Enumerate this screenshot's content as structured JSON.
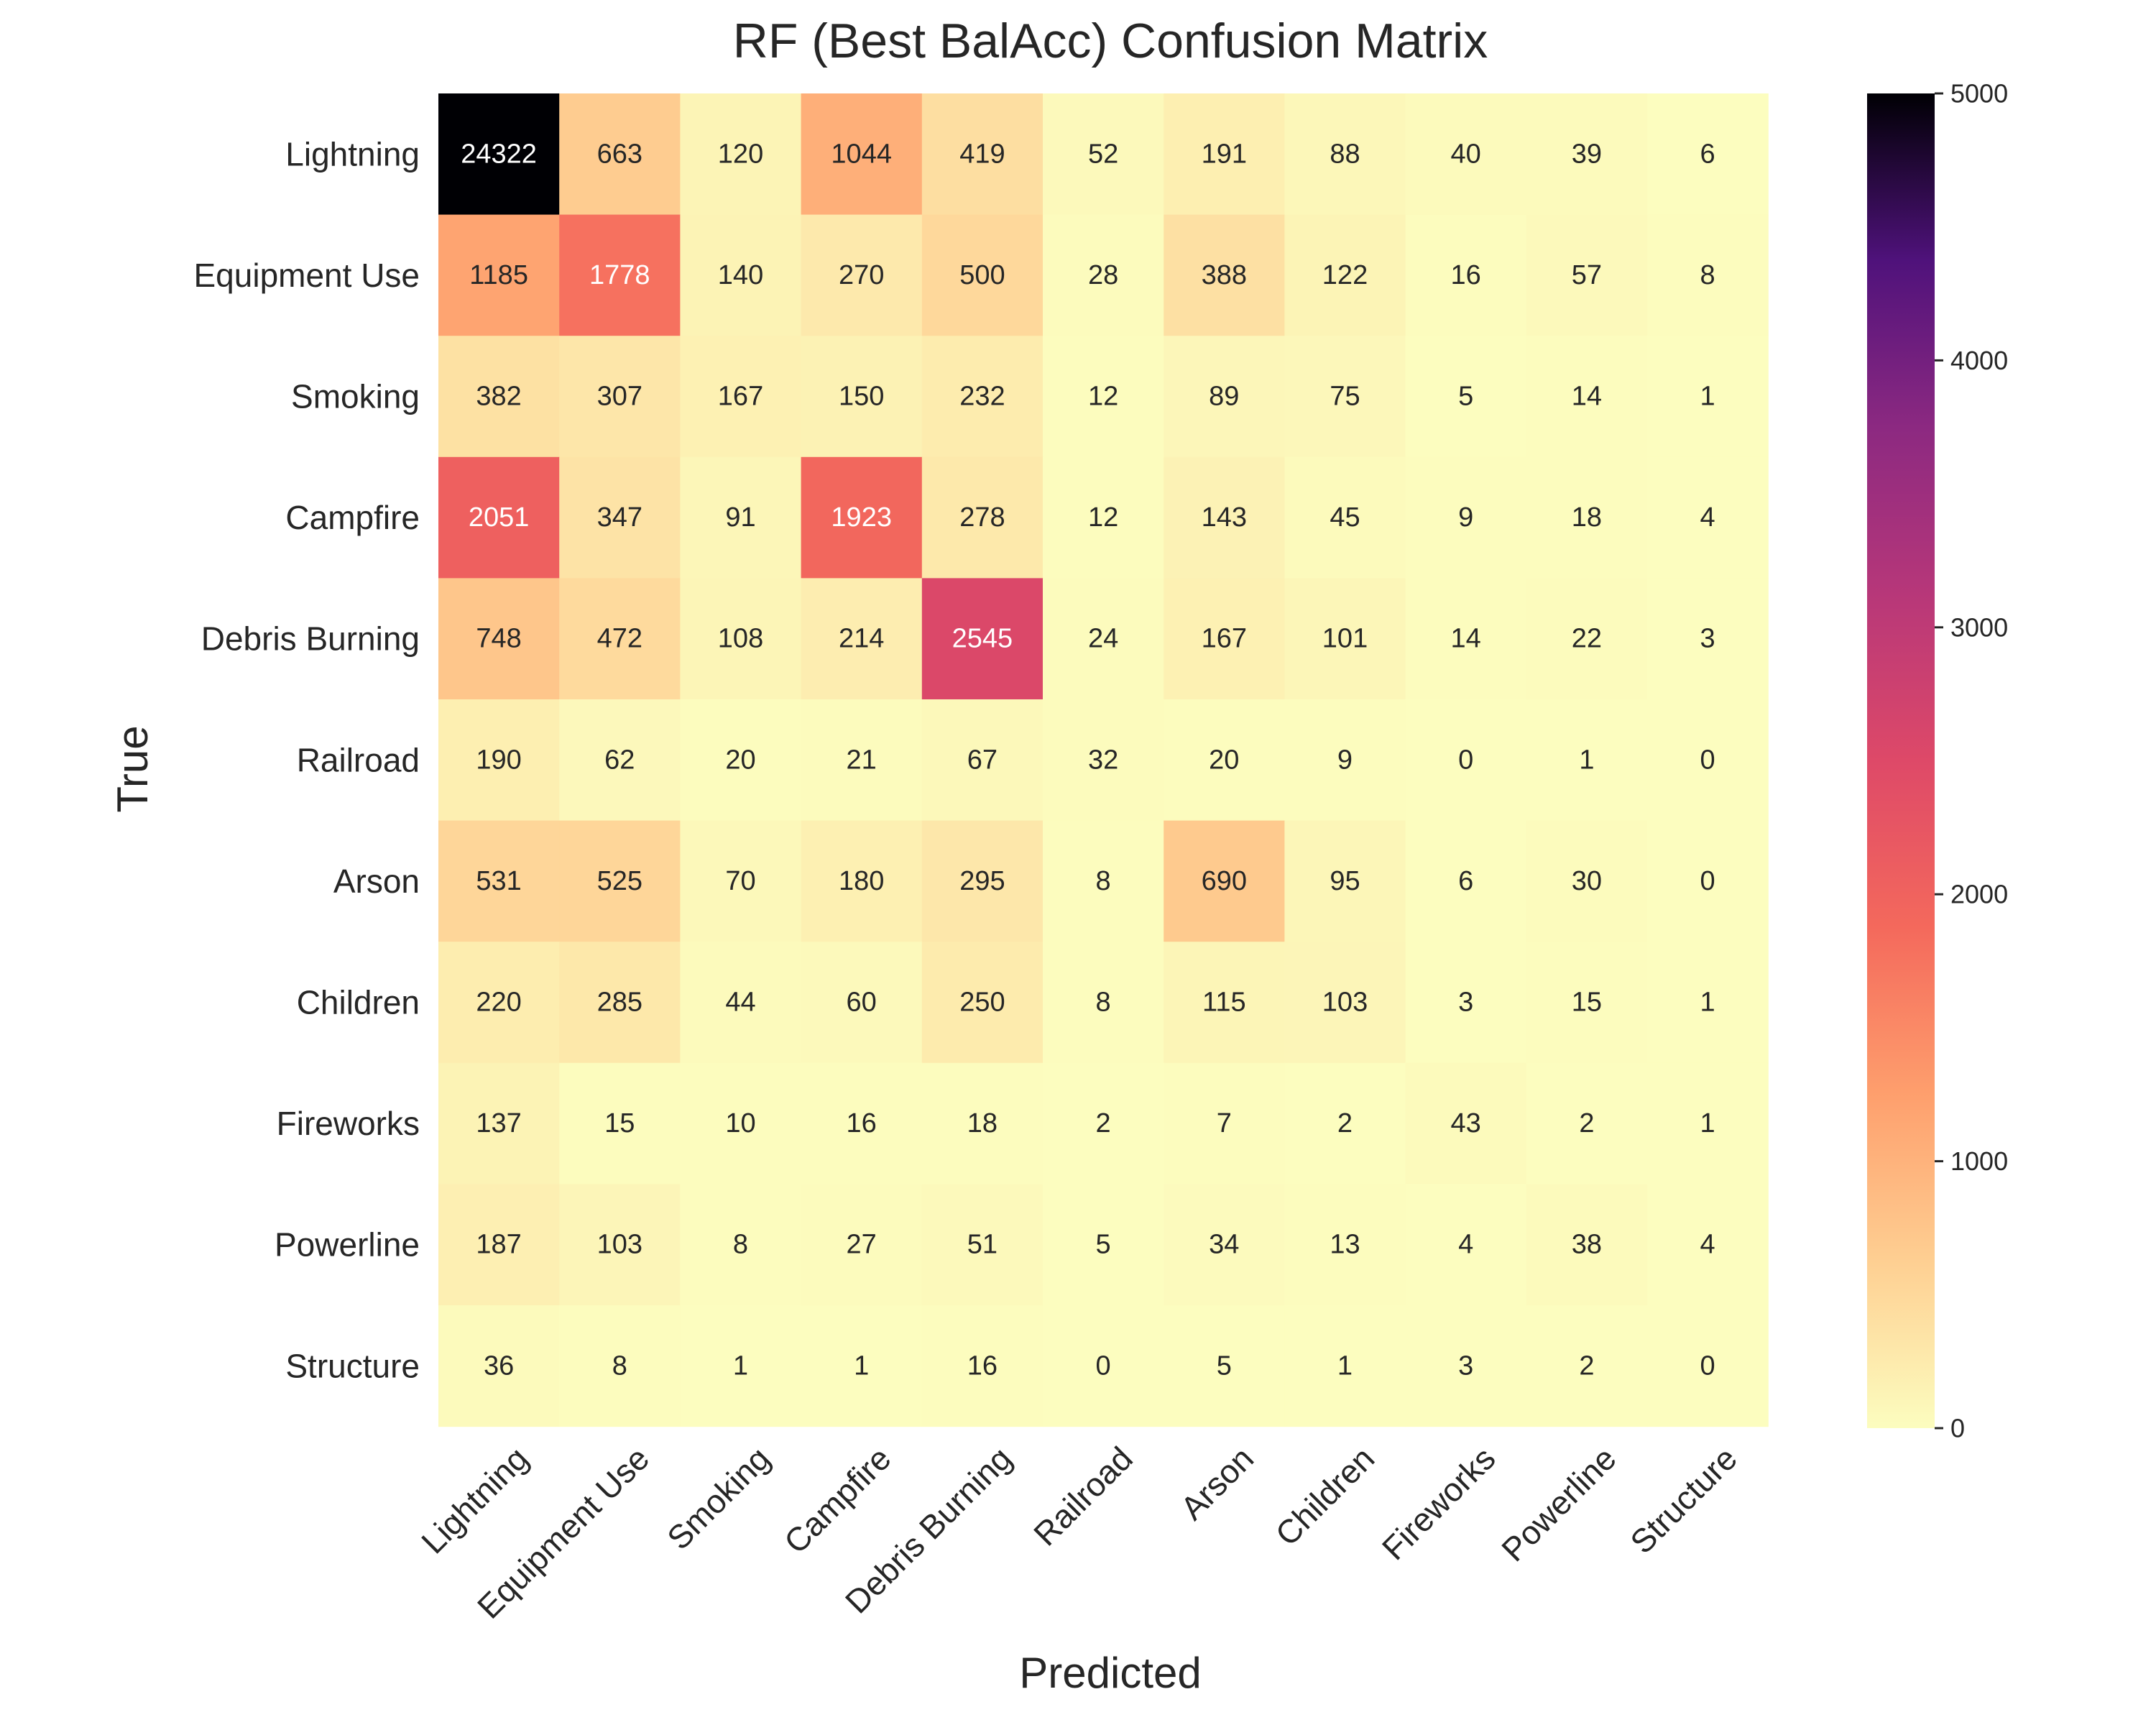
{
  "chart_data": {
    "type": "heatmap",
    "title": "RF (Best BalAcc) Confusion Matrix",
    "xlabel": "Predicted",
    "ylabel": "True",
    "x_categories": [
      "Lightning",
      "Equipment Use",
      "Smoking",
      "Campfire",
      "Debris Burning",
      "Railroad",
      "Arson",
      "Children",
      "Fireworks",
      "Powerline",
      "Structure"
    ],
    "y_categories": [
      "Lightning",
      "Equipment Use",
      "Smoking",
      "Campfire",
      "Debris Burning",
      "Railroad",
      "Arson",
      "Children",
      "Fireworks",
      "Powerline",
      "Structure"
    ],
    "values": [
      [
        24322,
        663,
        120,
        1044,
        419,
        52,
        191,
        88,
        40,
        39,
        6
      ],
      [
        1185,
        1778,
        140,
        270,
        500,
        28,
        388,
        122,
        16,
        57,
        8
      ],
      [
        382,
        307,
        167,
        150,
        232,
        12,
        89,
        75,
        5,
        14,
        1
      ],
      [
        2051,
        347,
        91,
        1923,
        278,
        12,
        143,
        45,
        9,
        18,
        4
      ],
      [
        748,
        472,
        108,
        214,
        2545,
        24,
        167,
        101,
        14,
        22,
        3
      ],
      [
        190,
        62,
        20,
        21,
        67,
        32,
        20,
        9,
        0,
        1,
        0
      ],
      [
        531,
        525,
        70,
        180,
        295,
        8,
        690,
        95,
        6,
        30,
        0
      ],
      [
        220,
        285,
        44,
        60,
        250,
        8,
        115,
        103,
        3,
        15,
        1
      ],
      [
        137,
        15,
        10,
        16,
        18,
        2,
        7,
        2,
        43,
        2,
        1
      ],
      [
        187,
        103,
        8,
        27,
        51,
        5,
        34,
        13,
        4,
        38,
        4
      ],
      [
        36,
        8,
        1,
        1,
        16,
        0,
        5,
        1,
        3,
        2,
        0
      ]
    ],
    "colormap": "magma_r",
    "vmin": 0,
    "vmax": 5000,
    "colorbar_ticks": [
      "0",
      "1000",
      "2000",
      "3000",
      "4000",
      "5000"
    ],
    "grid": false
  }
}
